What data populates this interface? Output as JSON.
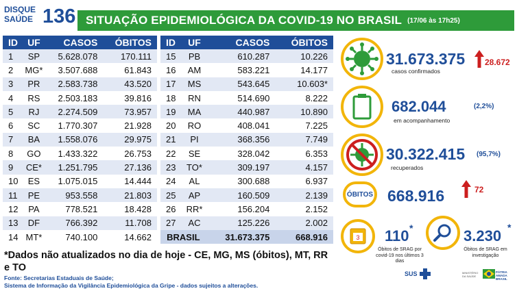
{
  "header": {
    "logo_line1": "DISQUE",
    "logo_line2": "SAÚDE",
    "logo_number": "136",
    "title": "SITUAÇÃO EPIDEMIOLÓGICA DA COVID-19 NO BRASIL",
    "date": "(17/06 às 17h25)"
  },
  "table": {
    "headers": [
      "ID",
      "UF",
      "CASOS",
      "ÓBITOS"
    ],
    "left_rows": [
      {
        "id": "1",
        "uf": "SP",
        "casos": "5.628.078",
        "obitos": "170.111"
      },
      {
        "id": "2",
        "uf": "MG*",
        "casos": "3.507.688",
        "obitos": "61.843"
      },
      {
        "id": "3",
        "uf": "PR",
        "casos": "2.583.738",
        "obitos": "43.520"
      },
      {
        "id": "4",
        "uf": "RS",
        "casos": "2.503.183",
        "obitos": "39.816"
      },
      {
        "id": "5",
        "uf": "RJ",
        "casos": "2.274.509",
        "obitos": "73.957"
      },
      {
        "id": "6",
        "uf": "SC",
        "casos": "1.770.307",
        "obitos": "21.928"
      },
      {
        "id": "7",
        "uf": "BA",
        "casos": "1.558.076",
        "obitos": "29.975"
      },
      {
        "id": "8",
        "uf": "GO",
        "casos": "1.433.322",
        "obitos": "26.753"
      },
      {
        "id": "9",
        "uf": "CE*",
        "casos": "1.251.795",
        "obitos": "27.136"
      },
      {
        "id": "10",
        "uf": "ES",
        "casos": "1.075.015",
        "obitos": "14.444"
      },
      {
        "id": "11",
        "uf": "PE",
        "casos": "953.558",
        "obitos": "21.803"
      },
      {
        "id": "12",
        "uf": "PA",
        "casos": "778.521",
        "obitos": "18.428"
      },
      {
        "id": "13",
        "uf": "DF",
        "casos": "766.392",
        "obitos": "11.708"
      },
      {
        "id": "14",
        "uf": "MT*",
        "casos": "740.100",
        "obitos": "14.662"
      }
    ],
    "right_rows": [
      {
        "id": "15",
        "uf": "PB",
        "casos": "610.287",
        "obitos": "10.226"
      },
      {
        "id": "16",
        "uf": "AM",
        "casos": "583.221",
        "obitos": "14.177"
      },
      {
        "id": "17",
        "uf": "MS",
        "casos": "543.645",
        "obitos": "10.603*"
      },
      {
        "id": "18",
        "uf": "RN",
        "casos": "514.690",
        "obitos": "8.222"
      },
      {
        "id": "19",
        "uf": "MA",
        "casos": "440.987",
        "obitos": "10.890"
      },
      {
        "id": "20",
        "uf": "RO",
        "casos": "408.041",
        "obitos": "7.225"
      },
      {
        "id": "21",
        "uf": "PI",
        "casos": "368.356",
        "obitos": "7.749"
      },
      {
        "id": "22",
        "uf": "SE",
        "casos": "328.042",
        "obitos": "6.353"
      },
      {
        "id": "23",
        "uf": "TO*",
        "casos": "309.197",
        "obitos": "4.157"
      },
      {
        "id": "24",
        "uf": "AL",
        "casos": "300.688",
        "obitos": "6.937"
      },
      {
        "id": "25",
        "uf": "AP",
        "casos": "160.509",
        "obitos": "2.139"
      },
      {
        "id": "26",
        "uf": "RR*",
        "casos": "156.204",
        "obitos": "2.152"
      },
      {
        "id": "27",
        "uf": "AC",
        "casos": "125.226",
        "obitos": "2.002"
      }
    ],
    "total": {
      "label": "BRASIL",
      "casos": "31.673.375",
      "obitos": "668.916"
    }
  },
  "note": "*Dados não atualizados no dia de hoje - CE, MG, MS (óbitos), MT, RR e TO",
  "source_line1": "Fonte: Secretarias Estaduais de Saúde;",
  "source_line2": "Sistema de Informação da Vigilância Epidemiológica da Gripe - dados sujeitos a alterações.",
  "stats": {
    "confirmados": {
      "value": "31.673.375",
      "label": "casos confirmados",
      "delta": "28.672"
    },
    "acompanhamento": {
      "value": "682.044",
      "label": "em acompanhamento",
      "pct": "(2,2%)"
    },
    "recuperados": {
      "value": "30.322.415",
      "label": "recuperados",
      "pct": "(95,7%)"
    },
    "obitos": {
      "badge": "ÓBITOS",
      "value": "668.916",
      "delta": "72"
    },
    "srag_recent": {
      "value": "110",
      "star": "*",
      "label": "Óbitos de SRAG por covid-19 nos últimos 3 dias",
      "icon_number": "3"
    },
    "srag_investigacao": {
      "value": "3.230",
      "star": "*",
      "label": "Óbitos de SRAG em investigação"
    }
  },
  "footer": {
    "sus": "SUS",
    "ministry": "MINISTÉRIO DA SAÚDE",
    "gov": "PÁTRIA AMADA BRASIL"
  },
  "colors": {
    "blue": "#1f4e99",
    "green": "#2e9b3a",
    "yellow": "#f2b50a",
    "red": "#cc1f1f",
    "row_alt": "#e2e8f4"
  }
}
